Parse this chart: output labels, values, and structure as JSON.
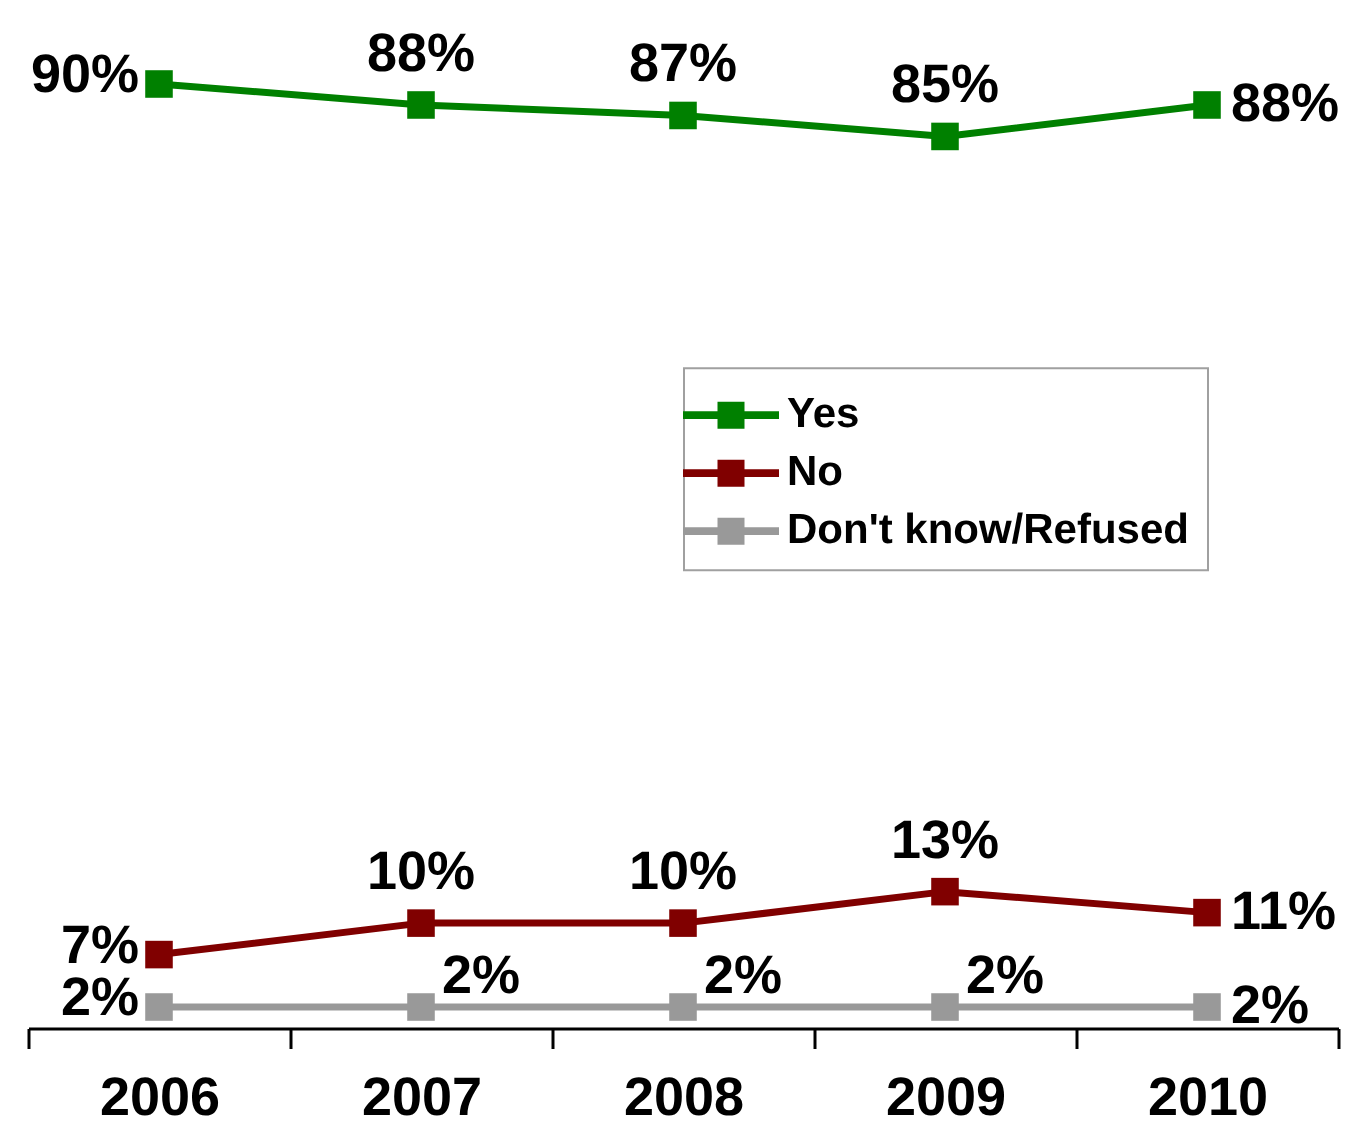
{
  "chart_data": {
    "type": "line",
    "categories": [
      "2006",
      "2007",
      "2008",
      "2009",
      "2010"
    ],
    "series": [
      {
        "name": "Yes",
        "color": "#008000",
        "values": [
          90,
          88,
          87,
          85,
          88
        ],
        "value_labels": [
          "90%",
          "88%",
          "87%",
          "85%",
          "88%"
        ]
      },
      {
        "name": "No",
        "color": "#800000",
        "values": [
          7,
          10,
          10,
          13,
          11
        ],
        "value_labels": [
          "7%",
          "10%",
          "10%",
          "13%",
          "11%"
        ]
      },
      {
        "name": "Don't know/Refused",
        "color": "#999999",
        "values": [
          2,
          2,
          2,
          2,
          2
        ],
        "value_labels": [
          "2%",
          "2%",
          "2%",
          "2%",
          "2%"
        ]
      }
    ],
    "marker": "square",
    "legend": "right",
    "tick_labels": "x"
  }
}
